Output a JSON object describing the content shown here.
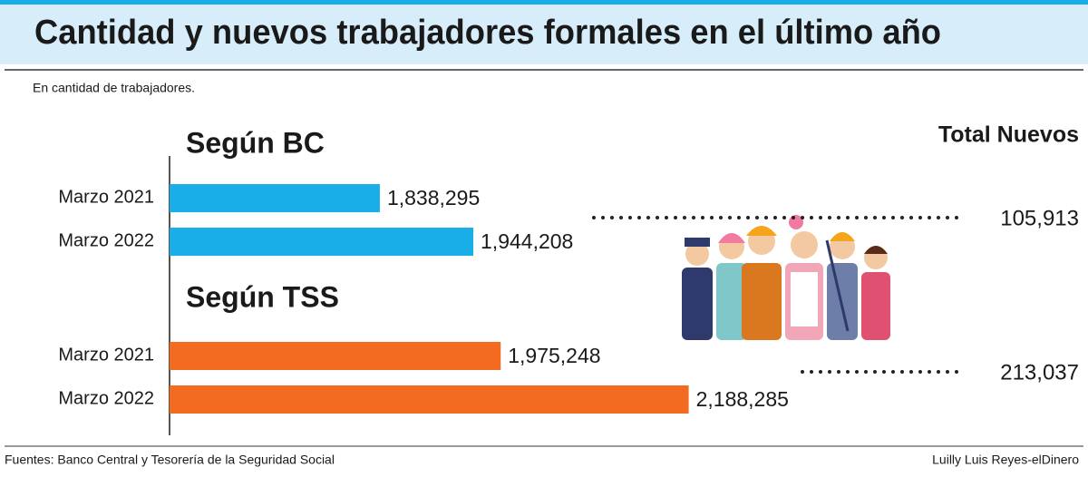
{
  "title": "Cantidad y nuevos trabajadores formales en el último año",
  "subtitle": "En cantidad de trabajadores.",
  "total_heading": "Total Nuevos",
  "chart_data": [
    {
      "type": "bar",
      "title": "Según BC",
      "categories": [
        "Marzo 2021",
        "Marzo 2022"
      ],
      "values": [
        1838295,
        1944208
      ],
      "value_labels": [
        "1,838,295",
        "1,944,208"
      ],
      "color": "#1aaee8",
      "xlim": [
        1600000,
        2200000
      ],
      "total": {
        "value": 105913,
        "label": "105,913"
      }
    },
    {
      "type": "bar",
      "title": "Según TSS",
      "categories": [
        "Marzo 2021",
        "Marzo 2022"
      ],
      "values": [
        1975248,
        2188285
      ],
      "value_labels": [
        "1,975,248",
        "2,188,285"
      ],
      "color": "#f26b21",
      "xlim": [
        1600000,
        2200000
      ],
      "total": {
        "value": 213037,
        "label": "213,037"
      }
    }
  ],
  "footer": {
    "source": "Fuentes: Banco Central y Tesorería de la Seguridad Social",
    "credit": "Luilly Luis Reyes-elDinero"
  }
}
